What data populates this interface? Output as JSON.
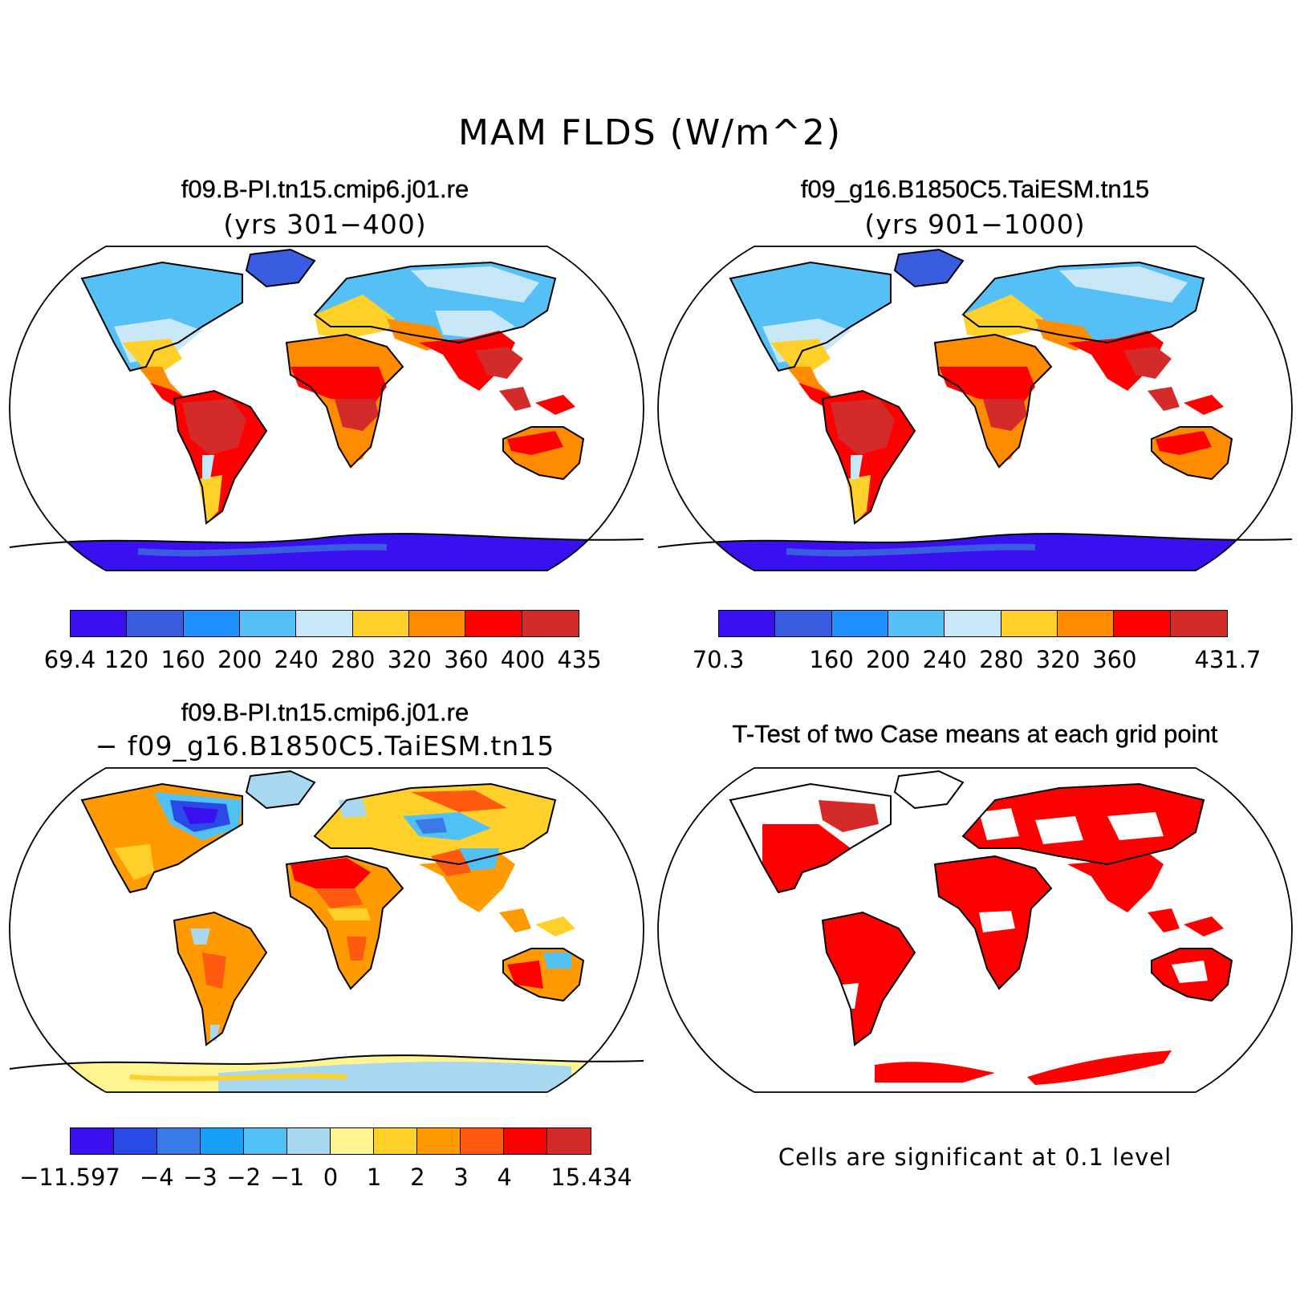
{
  "title": "MAM FLDS (W/m^2)",
  "panels": {
    "top_left": {
      "title": "f09.B-PI.tn15.cmip6.j01.re",
      "subtitle": "(yrs 301−400)",
      "colorbar": {
        "colors": [
          "#3a10f0",
          "#3a5ce0",
          "#1e90ff",
          "#55c0f5",
          "#c8e8f8",
          "#ffd02a",
          "#ff8c00",
          "#ff0000",
          "#d42a2a"
        ],
        "labels": [
          "69.4",
          "120",
          "160",
          "200",
          "240",
          "280",
          "320",
          "360",
          "400",
          "435"
        ]
      }
    },
    "top_right": {
      "title": "f09_g16.B1850C5.TaiESM.tn15",
      "subtitle": "(yrs 901−1000)",
      "colorbar": {
        "colors": [
          "#3a10f0",
          "#3a5ce0",
          "#1e90ff",
          "#55c0f5",
          "#c8e8f8",
          "#ffd02a",
          "#ff8c00",
          "#ff0000",
          "#d42a2a"
        ],
        "labels": [
          "70.3",
          "160",
          "200",
          "240",
          "280",
          "320",
          "360",
          "431.7"
        ]
      }
    },
    "bottom_left": {
      "title": "f09.B-PI.tn15.cmip6.j01.re",
      "subtitle": "− f09_g16.B1850C5.TaiESM.tn15",
      "colorbar": {
        "colors": [
          "#3a10f0",
          "#2a4ae8",
          "#3a7ae8",
          "#18a0f8",
          "#50c0f5",
          "#a8d8f0",
          "#fff590",
          "#ffd02a",
          "#ff9a00",
          "#ff5a10",
          "#ff0000",
          "#d42a2a"
        ],
        "labels": [
          "−11.597",
          "−4",
          "−3",
          "−2",
          "−1",
          "0",
          "1",
          "2",
          "3",
          "4",
          "15.434"
        ]
      }
    },
    "bottom_right": {
      "title": "T-Test of two Case means at each grid point",
      "note": "Cells are significant at 0.1 level"
    }
  }
}
